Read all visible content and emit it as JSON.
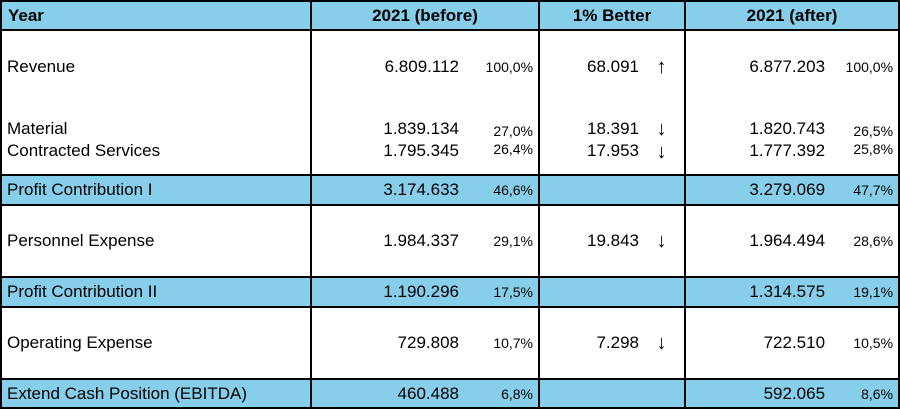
{
  "headers": {
    "year": "Year",
    "before": "2021 (before)",
    "better": "1% Better",
    "after": "2021 (after)"
  },
  "rows": [
    {
      "label": "Revenue",
      "before": "6.809.112",
      "before_pct": "100,0%",
      "change": "68.091",
      "arrow": "↑",
      "after": "6.877.203",
      "after_pct": "100,0%"
    },
    {
      "label": "Material",
      "before": "1.839.134",
      "before_pct": "27,0%",
      "change": "18.391",
      "arrow": "↓",
      "after": "1.820.743",
      "after_pct": "26,5%"
    },
    {
      "label": "Contracted Services",
      "before": "1.795.345",
      "before_pct": "26,4%",
      "change": "17.953",
      "arrow": "↓",
      "after": "1.777.392",
      "after_pct": "25,8%"
    },
    {
      "label": "Profit Contribution I",
      "before": "3.174.633",
      "before_pct": "46,6%",
      "change": "",
      "arrow": "",
      "after": "3.279.069",
      "after_pct": "47,7%"
    },
    {
      "label": "Personnel Expense",
      "before": "1.984.337",
      "before_pct": "29,1%",
      "change": "19.843",
      "arrow": "↓",
      "after": "1.964.494",
      "after_pct": "28,6%"
    },
    {
      "label": "Profit Contribution II",
      "before": "1.190.296",
      "before_pct": "17,5%",
      "change": "",
      "arrow": "",
      "after": "1.314.575",
      "after_pct": "19,1%"
    },
    {
      "label": "Operating Expense",
      "before": "729.808",
      "before_pct": "10,7%",
      "change": "7.298",
      "arrow": "↓",
      "after": "722.510",
      "after_pct": "10,5%"
    },
    {
      "label": "Extend Cash Position (EBITDA)",
      "before": "460.488",
      "before_pct": "6,8%",
      "change": "",
      "arrow": "",
      "after": "592.065",
      "after_pct": "8,6%"
    }
  ],
  "colors": {
    "highlight": "#87ceeb",
    "border": "#000000"
  }
}
